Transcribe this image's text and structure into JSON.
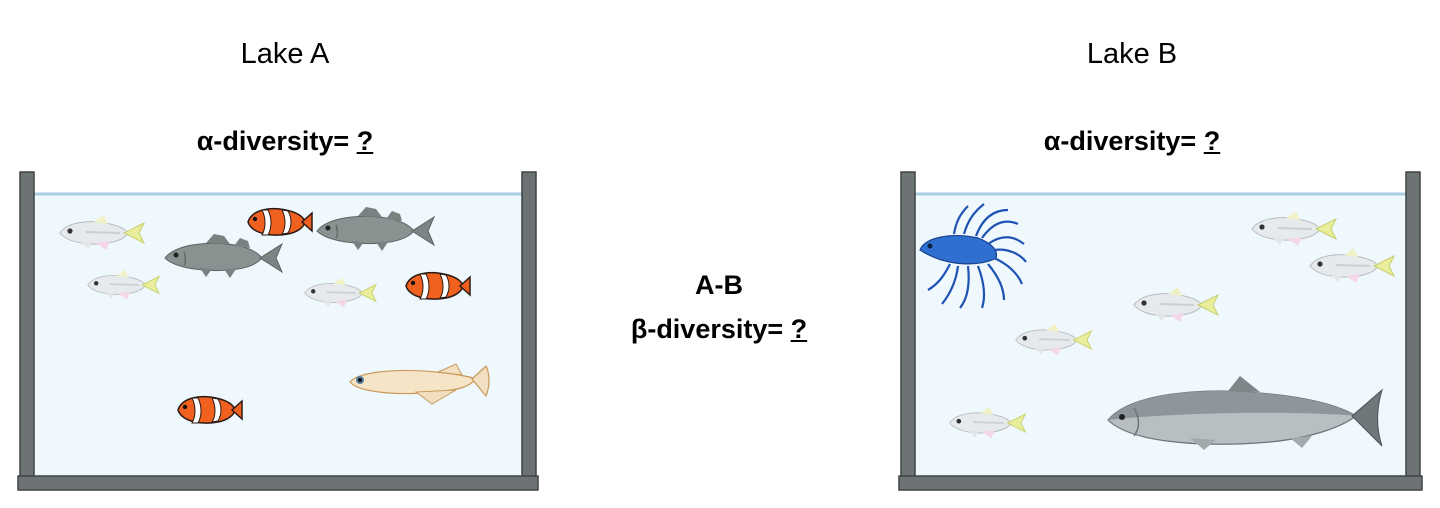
{
  "lakes": [
    {
      "name": "Lake A",
      "alpha_label": "α-diversity=",
      "alpha_value": "?"
    },
    {
      "name": "Lake B",
      "alpha_label": "α-diversity=",
      "alpha_value": "?"
    }
  ],
  "beta": {
    "pair": "A-B",
    "label": "β-diversity=",
    "value": "?"
  },
  "colors": {
    "water": "#eef8fd",
    "waterline": "#a9cfe3",
    "tank_frame": "#6d7374"
  },
  "lake_a_fish": [
    "tetra-fish-icon",
    "tetra-fish-icon",
    "tetra-fish-icon",
    "clownfish-icon",
    "clownfish-icon",
    "clownfish-icon",
    "sea-bass-icon",
    "sea-bass-icon",
    "medaka-fish-icon"
  ],
  "lake_b_fish": [
    "betta-fish-icon",
    "tetra-fish-icon",
    "tetra-fish-icon",
    "tetra-fish-icon",
    "tetra-fish-icon",
    "tetra-fish-icon",
    "salmon-icon"
  ]
}
